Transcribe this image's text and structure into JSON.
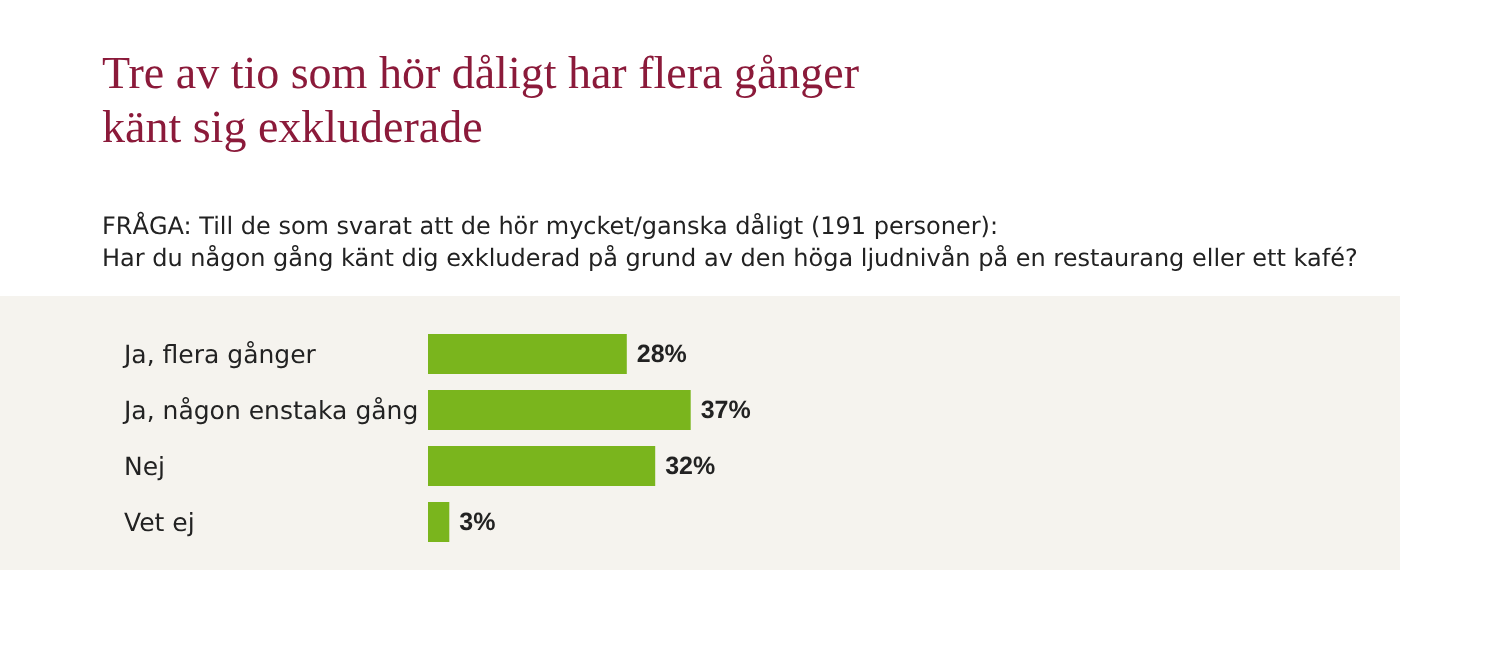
{
  "chart_data": {
    "type": "bar",
    "orientation": "horizontal",
    "title": "Tre av tio som hör dåligt har flera gånger\nkänt sig exkluderade",
    "subtitle": "FRÅGA: Till de som svarat att de hör mycket/ganska dåligt (191 personer):\nHar du någon gång känt dig exkluderad på grund av den höga ljudnivån på en restaurang eller ett kafé?",
    "categories": [
      "Ja, flera gånger",
      "Ja, någon enstaka gång",
      "Nej",
      "Vet ej"
    ],
    "values": [
      28,
      37,
      32,
      3
    ],
    "value_labels": [
      "28%",
      "37%",
      "32%",
      "3%"
    ],
    "color": "#7ab51d",
    "tick_labels": "y"
  }
}
